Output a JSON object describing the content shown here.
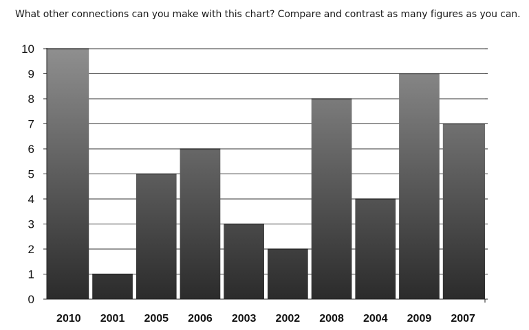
{
  "question": "What other connections can you make with this chart? Compare and contrast as many figures as you can.",
  "chart_data": {
    "type": "bar",
    "title": "",
    "xlabel": "",
    "ylabel": "",
    "categories": [
      "2010",
      "2001",
      "2005",
      "2006",
      "2003",
      "2002",
      "2008",
      "2004",
      "2009",
      "2007"
    ],
    "values": [
      10,
      1,
      5,
      6,
      3,
      2,
      8,
      4,
      9,
      7
    ],
    "ylim": [
      0,
      10
    ],
    "y_ticks": [
      "0",
      "1",
      "2",
      "3",
      "4",
      "5",
      "6",
      "7",
      "8",
      "9",
      "10"
    ],
    "grid": true,
    "legend": "none",
    "colors": {
      "bar_top": "#8f8f8f",
      "bar_bottom": "#2b2b2b",
      "grid": "#333333",
      "axis": "#222222"
    }
  }
}
